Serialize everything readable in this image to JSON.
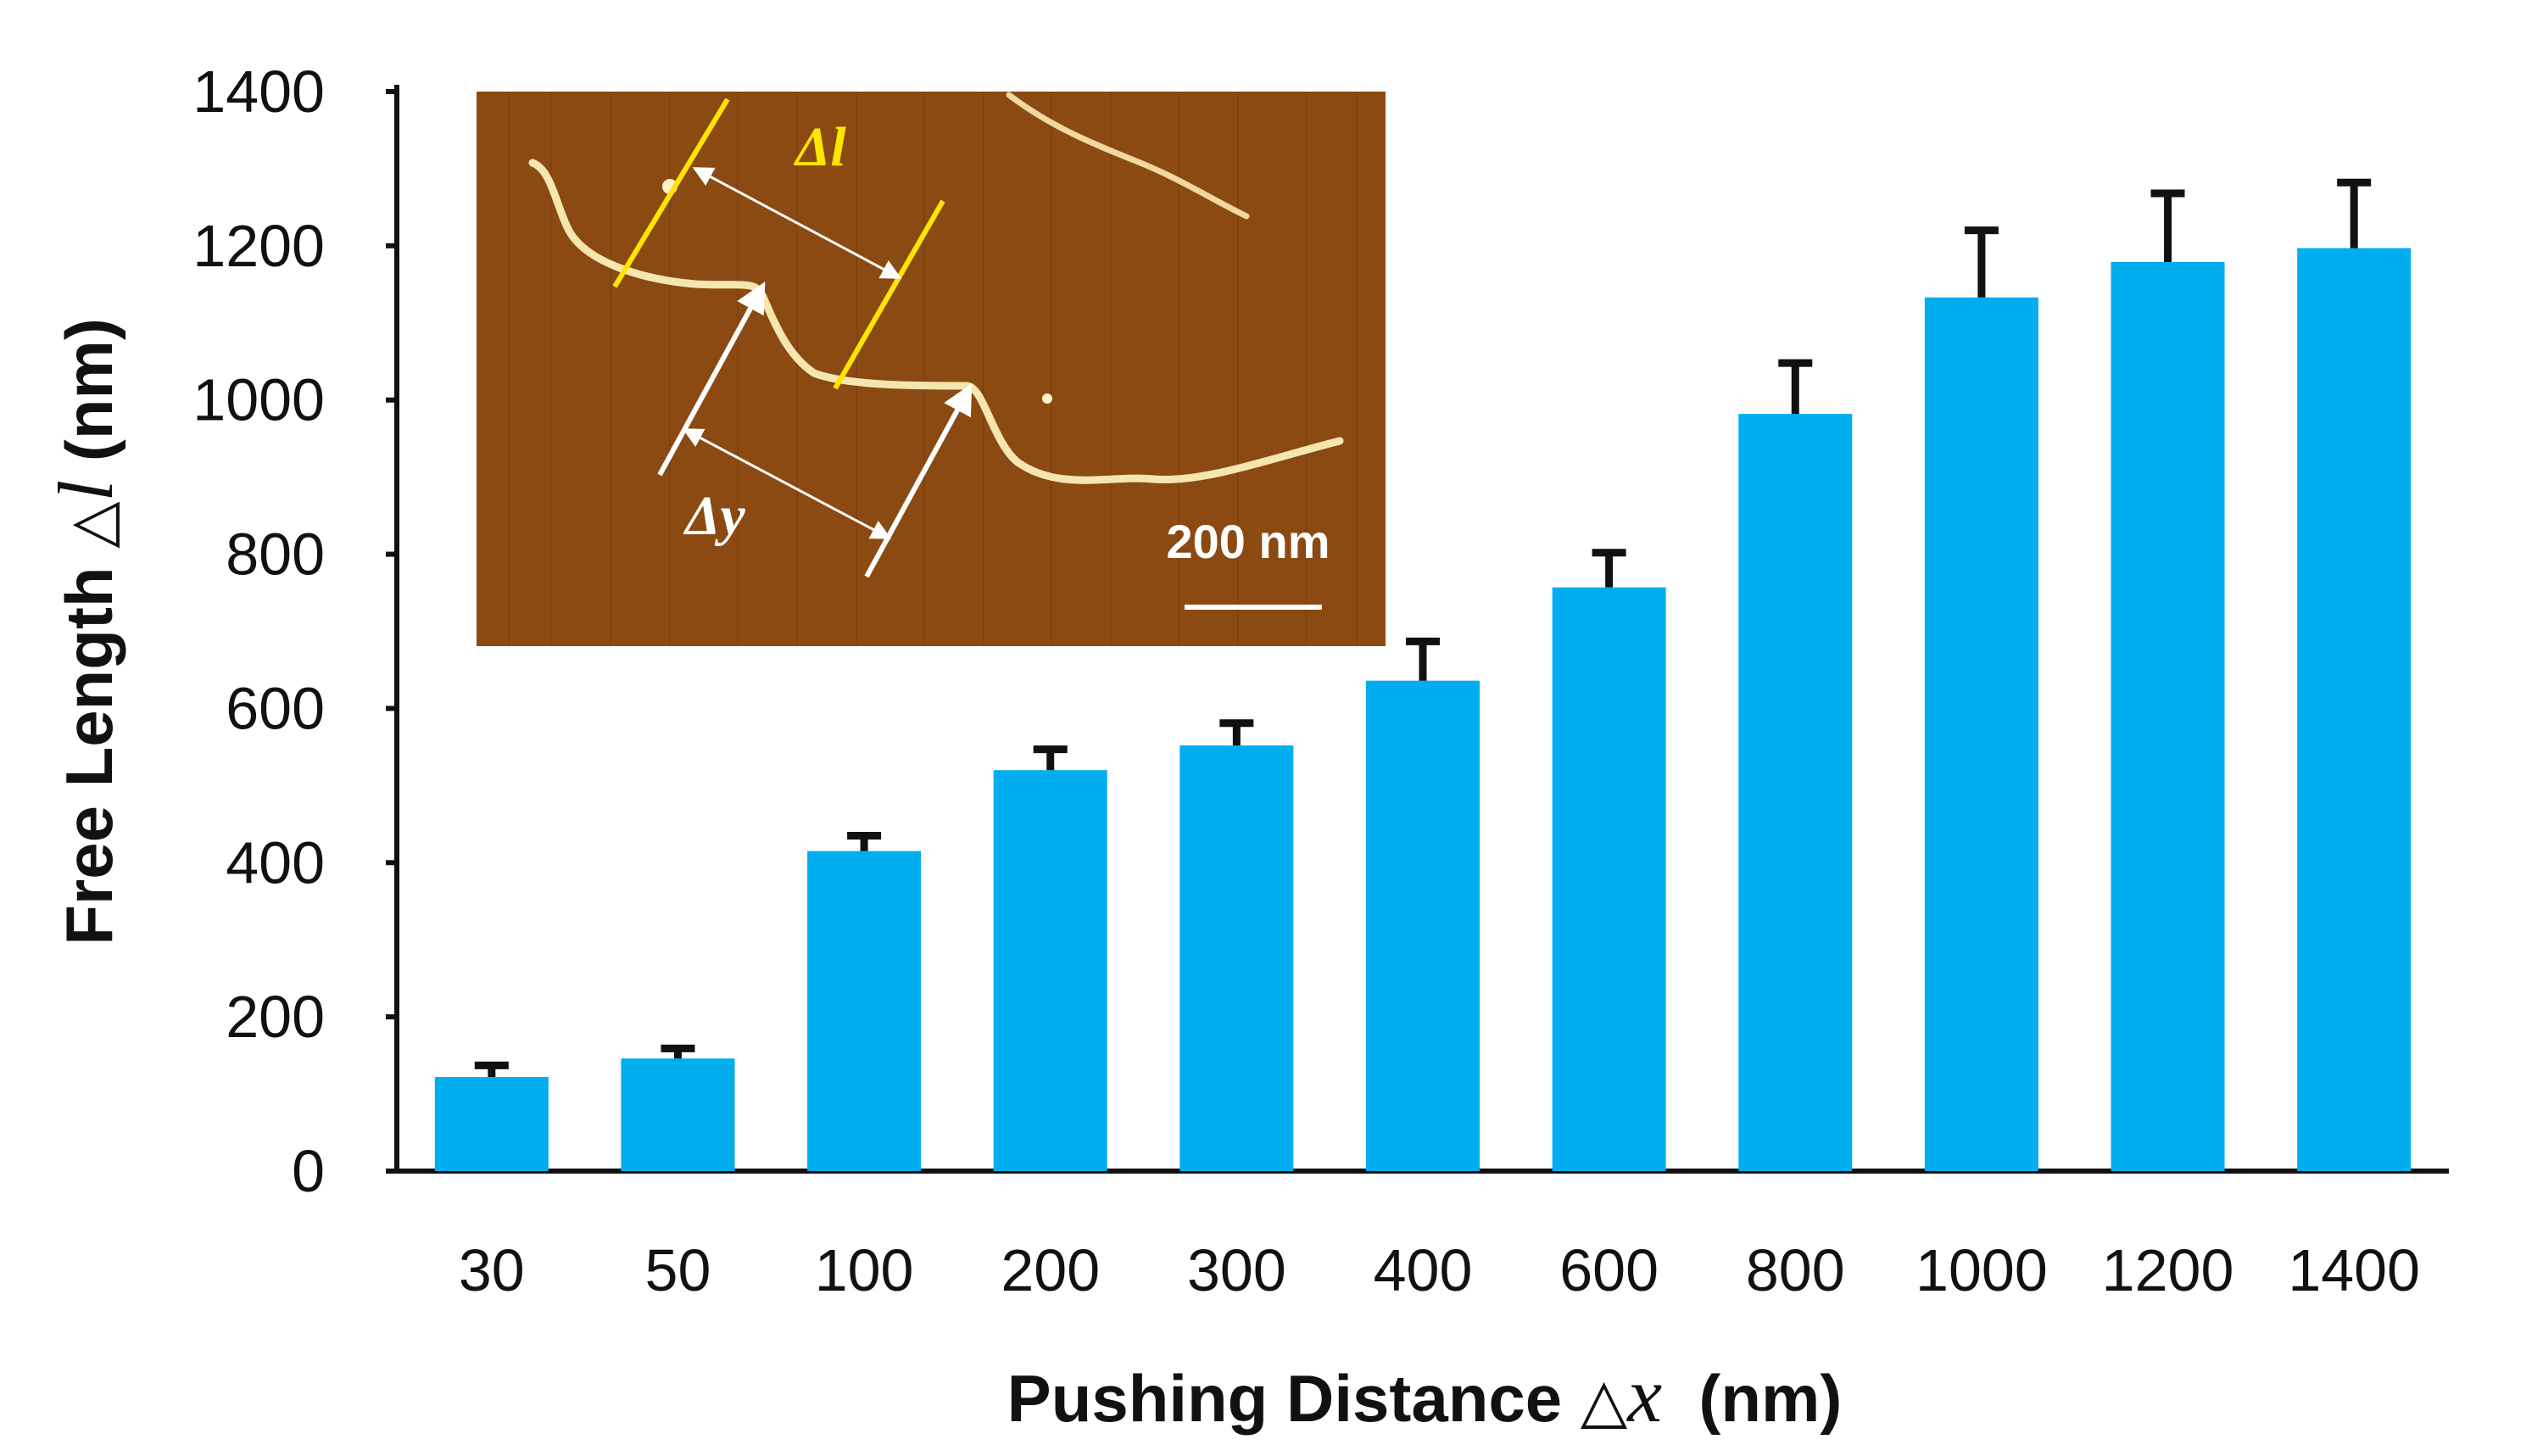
{
  "chart_data": {
    "type": "bar",
    "categories": [
      "30",
      "50",
      "100",
      "200",
      "300",
      "400",
      "600",
      "800",
      "1000",
      "1200",
      "1400"
    ],
    "values": [
      122,
      146,
      415,
      520,
      552,
      636,
      757,
      982,
      1133,
      1179,
      1197
    ],
    "error_upper": [
      137,
      159,
      435,
      547,
      581,
      687,
      802,
      1048,
      1220,
      1268,
      1282
    ],
    "title": "",
    "xlabel": {
      "prefix": "Pushing Distance ",
      "triangle": "△",
      "symbol": "x",
      "suffix": "  (nm)"
    },
    "ylabel": {
      "prefix": "Free Length ",
      "triangle": "△",
      "symbol": "l",
      "suffix": " (nm)"
    },
    "ylim": [
      0,
      1400
    ],
    "yticks": [
      "0",
      "200",
      "400",
      "600",
      "800",
      "1000",
      "1200",
      "1400"
    ],
    "grid": false,
    "legend": "none",
    "bar_color": "#00AEEF",
    "error_color": "#111111"
  },
  "inset": {
    "description_label_l": "Δl",
    "description_label_y": "Δy",
    "scale_bar_label": "200 nm",
    "background_color": "#8B4A12",
    "highlight_color": "#FFE500"
  }
}
